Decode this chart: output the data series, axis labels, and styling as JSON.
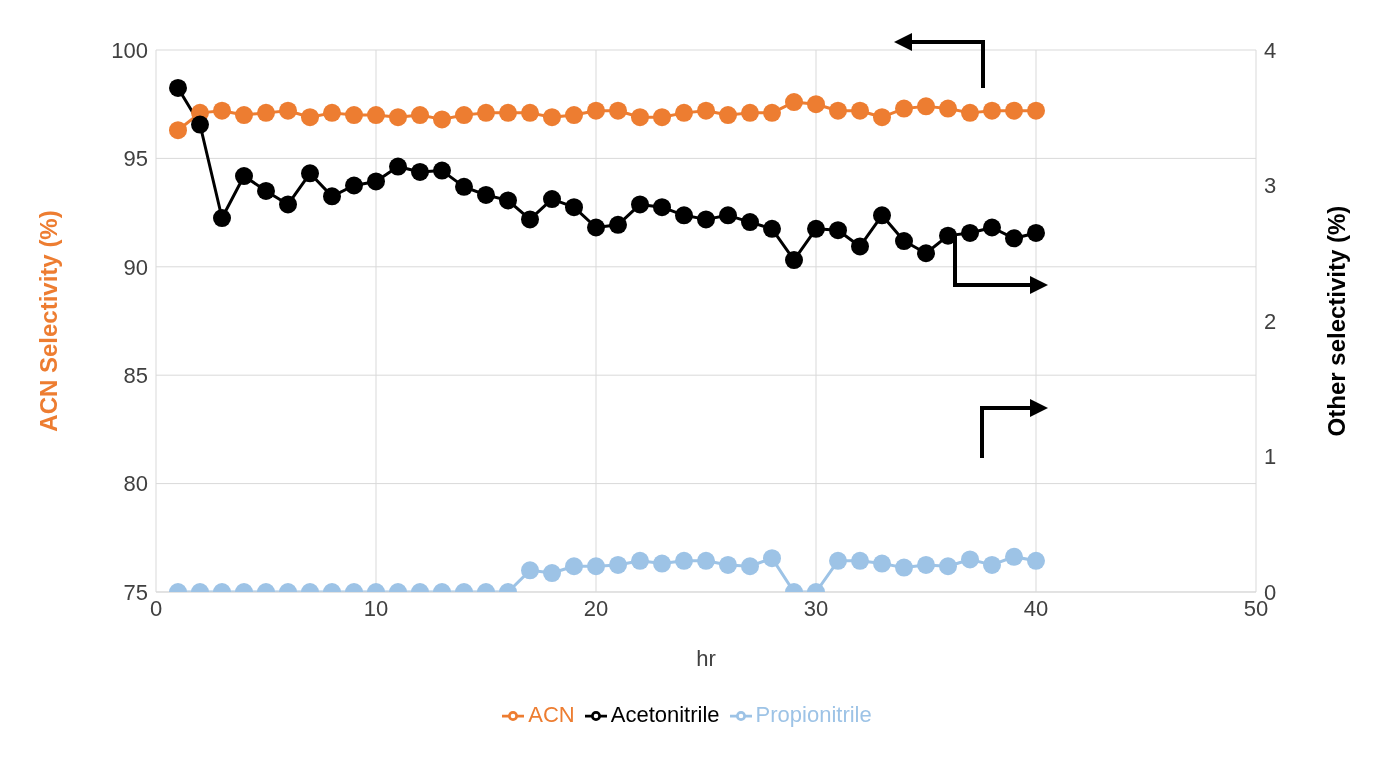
{
  "chart_data": {
    "type": "line",
    "xlabel": "hr",
    "ylabel": "ACN Selectivity (%)",
    "y2label": "Other selectivity (%)",
    "x": [
      1,
      2,
      3,
      4,
      5,
      6,
      7,
      8,
      9,
      10,
      11,
      12,
      13,
      14,
      15,
      16,
      17,
      18,
      19,
      20,
      21,
      22,
      23,
      24,
      25,
      26,
      27,
      28,
      29,
      30,
      31,
      32,
      33,
      34,
      35,
      36,
      37,
      38,
      39,
      40
    ],
    "series": [
      {
        "name": "ACN",
        "color": "#ed7d31",
        "values": [
          96.3,
          97.1,
          97.2,
          97.0,
          97.1,
          97.2,
          96.9,
          97.1,
          97.0,
          97.0,
          96.9,
          97.0,
          96.8,
          97.0,
          97.1,
          97.1,
          97.1,
          96.9,
          97.0,
          97.2,
          97.2,
          96.9,
          96.9,
          97.1,
          97.2,
          97.0,
          97.1,
          97.1,
          97.6,
          97.5,
          97.2,
          97.2,
          96.9,
          97.3,
          97.4,
          97.3,
          97.1,
          97.2,
          97.2,
          97.2
        ]
      },
      {
        "name": "Acetonitrile",
        "color": "#000000",
        "axis": "y2",
        "values": [
          3.72,
          3.45,
          2.76,
          3.07,
          2.96,
          2.86,
          3.09,
          2.92,
          3.0,
          3.03,
          3.14,
          3.1,
          3.11,
          2.99,
          2.93,
          2.89,
          2.75,
          2.9,
          2.84,
          2.69,
          2.71,
          2.86,
          2.84,
          2.78,
          2.75,
          2.78,
          2.73,
          2.68,
          2.45,
          2.68,
          2.67,
          2.55,
          2.78,
          2.59,
          2.5,
          2.63,
          2.65,
          2.69,
          2.61,
          2.65
        ]
      },
      {
        "name": "Propionitrile",
        "color": "#9dc3e6",
        "axis": "y2",
        "values": [
          0,
          0,
          0,
          0,
          0,
          0,
          0,
          0,
          0,
          0,
          0,
          0,
          0,
          0,
          0,
          0,
          0.16,
          0.14,
          0.19,
          0.19,
          0.2,
          0.23,
          0.21,
          0.23,
          0.23,
          0.2,
          0.19,
          0.25,
          0,
          0,
          0.23,
          0.23,
          0.21,
          0.18,
          0.2,
          0.19,
          0.24,
          0.2,
          0.26,
          0.23
        ]
      }
    ],
    "xlim": [
      0,
      50
    ],
    "xticks": [
      0,
      10,
      20,
      30,
      40,
      50
    ],
    "ylim": [
      75,
      100
    ],
    "yticks": [
      75,
      80,
      85,
      90,
      95,
      100
    ],
    "y2lim": [
      0,
      4
    ],
    "y2ticks": [
      0,
      1,
      2,
      3,
      4
    ],
    "grid": true,
    "legend": "bottom",
    "marker": "circle",
    "line_style": "solid"
  }
}
